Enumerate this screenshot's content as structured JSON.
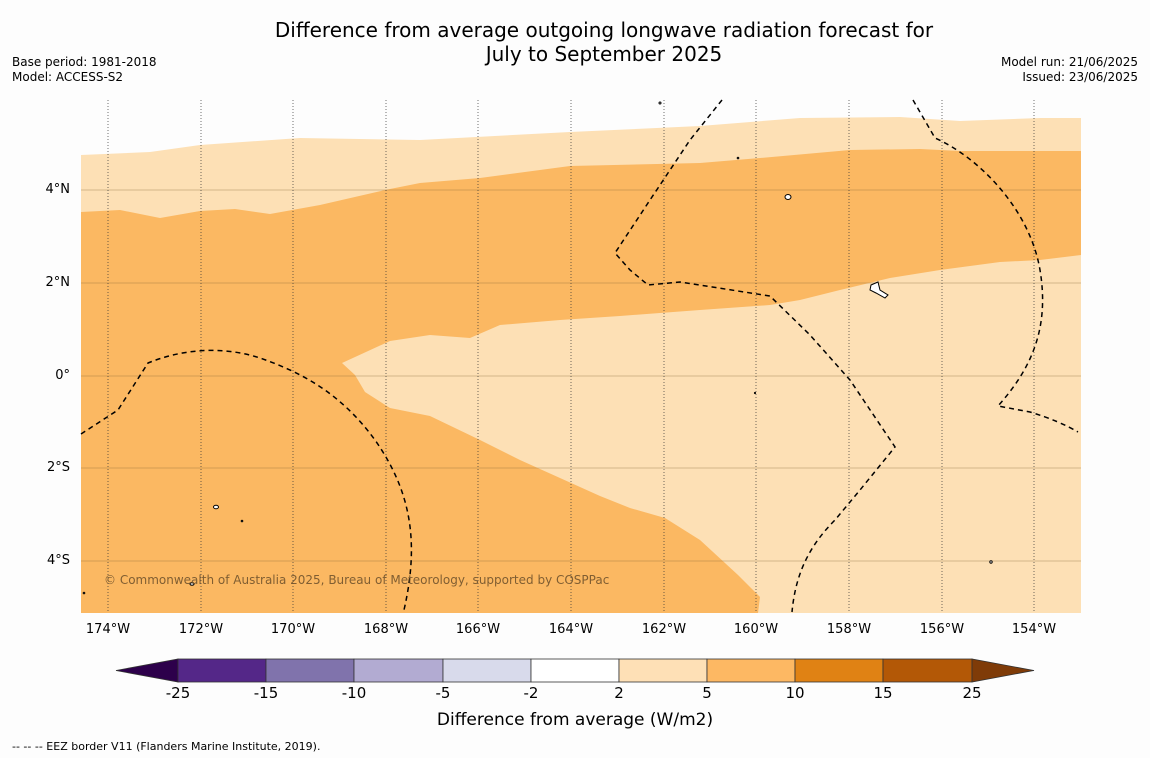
{
  "title": {
    "line1": "Difference from average outgoing longwave radiation forecast for",
    "line2": "July to September 2025"
  },
  "meta_left": {
    "base_period": "Base period: 1981-2018",
    "model": "Model: ACCESS-S2"
  },
  "meta_right": {
    "model_run": "Model run: 21/06/2025",
    "issued": "Issued: 23/06/2025"
  },
  "map": {
    "latitude_labels": [
      "4°N",
      "2°N",
      "0°",
      "2°S",
      "4°S"
    ],
    "longitude_labels": [
      "174°W",
      "172°W",
      "170°W",
      "168°W",
      "166°W",
      "164°W",
      "162°W",
      "160°W",
      "158°W",
      "156°W",
      "154°W"
    ],
    "copyright": "© Commonwealth of Australia 2025, Bureau of Meteorology, supported by COSPPac",
    "region_colors": {
      "2_to_5": "#fde0b5",
      "5_to_10": "#fbb862"
    }
  },
  "colorbar": {
    "title": "Difference from average (W/m2)",
    "tick_labels": [
      "-25",
      "-15",
      "-10",
      "-5",
      "-2",
      "2",
      "5",
      "10",
      "15",
      "25"
    ],
    "colors": [
      "#2d004b",
      "#542788",
      "#8073ac",
      "#b2abd2",
      "#d8daeb",
      "#ffffff",
      "#fee0b6",
      "#fdb863",
      "#e08214",
      "#b35806",
      "#7f3b08"
    ]
  },
  "footnote": "--  --  -- EEZ border V11 (Flanders Marine Institute, 2019)."
}
